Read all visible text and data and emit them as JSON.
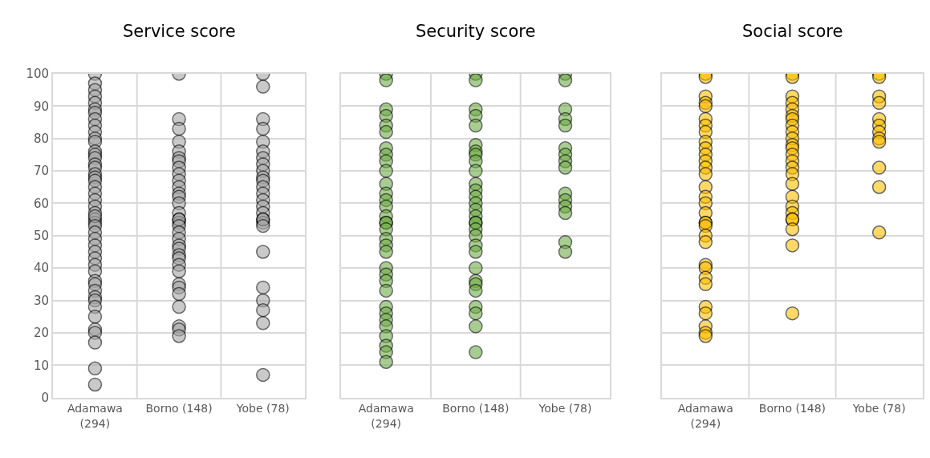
{
  "chart_data": [
    {
      "type": "scatter",
      "title": "Service score",
      "categories": [
        "Adamawa (294)",
        "Borno (148)",
        "Yobe (78)"
      ],
      "ylim": [
        0,
        100
      ],
      "yticks": [
        0,
        10,
        20,
        30,
        40,
        50,
        60,
        70,
        80,
        90,
        100
      ],
      "grid": true,
      "marker": "circle",
      "series": [
        {
          "color": "#a6a6a6",
          "x": [
            "Adamawa (294)",
            "Adamawa (294)",
            "Adamawa (294)",
            "Adamawa (294)",
            "Adamawa (294)",
            "Adamawa (294)",
            "Adamawa (294)",
            "Adamawa (294)",
            "Adamawa (294)",
            "Adamawa (294)",
            "Adamawa (294)",
            "Adamawa (294)",
            "Adamawa (294)",
            "Adamawa (294)",
            "Adamawa (294)",
            "Adamawa (294)",
            "Adamawa (294)",
            "Adamawa (294)",
            "Adamawa (294)",
            "Adamawa (294)",
            "Adamawa (294)",
            "Adamawa (294)",
            "Adamawa (294)",
            "Adamawa (294)",
            "Adamawa (294)",
            "Adamawa (294)",
            "Adamawa (294)",
            "Adamawa (294)",
            "Adamawa (294)",
            "Adamawa (294)",
            "Adamawa (294)",
            "Adamawa (294)",
            "Adamawa (294)",
            "Adamawa (294)",
            "Adamawa (294)",
            "Adamawa (294)",
            "Adamawa (294)",
            "Adamawa (294)",
            "Adamawa (294)",
            "Adamawa (294)",
            "Adamawa (294)",
            "Adamawa (294)",
            "Adamawa (294)",
            "Adamawa (294)",
            "Adamawa (294)",
            "Adamawa (294)",
            "Adamawa (294)",
            "Adamawa (294)",
            "Borno (148)",
            "Borno (148)",
            "Borno (148)",
            "Borno (148)",
            "Borno (148)",
            "Borno (148)",
            "Borno (148)",
            "Borno (148)",
            "Borno (148)",
            "Borno (148)",
            "Borno (148)",
            "Borno (148)",
            "Borno (148)",
            "Borno (148)",
            "Borno (148)",
            "Borno (148)",
            "Borno (148)",
            "Borno (148)",
            "Borno (148)",
            "Borno (148)",
            "Borno (148)",
            "Borno (148)",
            "Borno (148)",
            "Borno (148)",
            "Borno (148)",
            "Borno (148)",
            "Borno (148)",
            "Borno (148)",
            "Borno (148)",
            "Borno (148)",
            "Borno (148)",
            "Borno (148)",
            "Borno (148)",
            "Borno (148)",
            "Yobe (78)",
            "Yobe (78)",
            "Yobe (78)",
            "Yobe (78)",
            "Yobe (78)",
            "Yobe (78)",
            "Yobe (78)",
            "Yobe (78)",
            "Yobe (78)",
            "Yobe (78)",
            "Yobe (78)",
            "Yobe (78)",
            "Yobe (78)",
            "Yobe (78)",
            "Yobe (78)",
            "Yobe (78)",
            "Yobe (78)",
            "Yobe (78)",
            "Yobe (78)",
            "Yobe (78)",
            "Yobe (78)",
            "Yobe (78)",
            "Yobe (78)",
            "Yobe (78)",
            "Yobe (78)",
            "Yobe (78)"
          ],
          "values": [
            100,
            97,
            95,
            93,
            91,
            89,
            88,
            86,
            84,
            82,
            80,
            79,
            76,
            75,
            74,
            72,
            71,
            69,
            68,
            67,
            65,
            63,
            61,
            59,
            57,
            55,
            54,
            56,
            53,
            51,
            49,
            47,
            45,
            43,
            41,
            39,
            36,
            35,
            33,
            31,
            30,
            28,
            25,
            21,
            20,
            17,
            9,
            4,
            100,
            86,
            83,
            79,
            76,
            74,
            73,
            71,
            69,
            67,
            65,
            63,
            62,
            60,
            57,
            55,
            54,
            55,
            53,
            51,
            49,
            47,
            46,
            44,
            43,
            41,
            39,
            35,
            34,
            32,
            28,
            22,
            21,
            19,
            100,
            96,
            86,
            83,
            79,
            76,
            74,
            72,
            70,
            68,
            67,
            65,
            63,
            61,
            59,
            57,
            55,
            54,
            55,
            53,
            45,
            34,
            30,
            27,
            23,
            7
          ]
        }
      ]
    },
    {
      "type": "scatter",
      "title": "Security score",
      "categories": [
        "Adamawa (294)",
        "Borno (148)",
        "Yobe (78)"
      ],
      "ylim": [
        0,
        100
      ],
      "yticks": [
        {
          "value": 0,
          "label": null
        },
        {
          "value": 10,
          "label": null
        },
        {
          "value": 20,
          "label": null
        },
        {
          "value": 30,
          "label": null
        },
        {
          "value": 40,
          "label": null
        },
        {
          "value": 50,
          "label": null
        },
        {
          "value": 60,
          "label": null
        },
        {
          "value": 70,
          "label": null
        },
        {
          "value": 80,
          "label": null
        },
        {
          "value": 90,
          "label": null
        },
        {
          "value": 100,
          "label": null
        }
      ],
      "tick_labels": "x",
      "grid": true,
      "marker": "circle",
      "series": [
        {
          "color": "#70ad47",
          "x": [
            "Adamawa (294)",
            "Adamawa (294)",
            "Adamawa (294)",
            "Adamawa (294)",
            "Adamawa (294)",
            "Adamawa (294)",
            "Adamawa (294)",
            "Adamawa (294)",
            "Adamawa (294)",
            "Adamawa (294)",
            "Adamawa (294)",
            "Adamawa (294)",
            "Adamawa (294)",
            "Adamawa (294)",
            "Adamawa (294)",
            "Adamawa (294)",
            "Adamawa (294)",
            "Adamawa (294)",
            "Adamawa (294)",
            "Adamawa (294)",
            "Adamawa (294)",
            "Adamawa (294)",
            "Adamawa (294)",
            "Adamawa (294)",
            "Adamawa (294)",
            "Adamawa (294)",
            "Adamawa (294)",
            "Adamawa (294)",
            "Adamawa (294)",
            "Adamawa (294)",
            "Adamawa (294)",
            "Adamawa (294)",
            "Adamawa (294)",
            "Borno (148)",
            "Borno (148)",
            "Borno (148)",
            "Borno (148)",
            "Borno (148)",
            "Borno (148)",
            "Borno (148)",
            "Borno (148)",
            "Borno (148)",
            "Borno (148)",
            "Borno (148)",
            "Borno (148)",
            "Borno (148)",
            "Borno (148)",
            "Borno (148)",
            "Borno (148)",
            "Borno (148)",
            "Borno (148)",
            "Borno (148)",
            "Borno (148)",
            "Borno (148)",
            "Borno (148)",
            "Borno (148)",
            "Borno (148)",
            "Borno (148)",
            "Borno (148)",
            "Borno (148)",
            "Borno (148)",
            "Borno (148)",
            "Borno (148)",
            "Yobe (78)",
            "Yobe (78)",
            "Yobe (78)",
            "Yobe (78)",
            "Yobe (78)",
            "Yobe (78)",
            "Yobe (78)",
            "Yobe (78)",
            "Yobe (78)",
            "Yobe (78)",
            "Yobe (78)",
            "Yobe (78)",
            "Yobe (78)",
            "Yobe (78)",
            "Yobe (78)"
          ],
          "values": [
            100,
            98,
            89,
            87,
            84,
            82,
            77,
            75,
            73,
            70,
            66,
            63,
            61,
            59,
            56,
            54,
            54,
            52,
            49,
            47,
            45,
            40,
            38,
            36,
            33,
            28,
            26,
            24,
            22,
            19,
            16,
            14,
            11,
            100,
            98,
            89,
            87,
            84,
            78,
            76,
            75,
            73,
            70,
            66,
            64,
            62,
            60,
            58,
            56,
            54,
            54,
            52,
            50,
            47,
            45,
            40,
            36,
            35,
            33,
            28,
            26,
            22,
            14,
            100,
            98,
            89,
            86,
            84,
            77,
            75,
            73,
            71,
            63,
            61,
            59,
            57,
            48,
            45
          ]
        }
      ]
    },
    {
      "type": "scatter",
      "title": "Social score",
      "categories": [
        "Adamawa (294)",
        "Borno (148)",
        "Yobe (78)"
      ],
      "ylim": [
        0,
        100
      ],
      "yticks": [
        {
          "value": 0,
          "label": null
        },
        {
          "value": 10,
          "label": null
        },
        {
          "value": 20,
          "label": null
        },
        {
          "value": 30,
          "label": null
        },
        {
          "value": 40,
          "label": null
        },
        {
          "value": 50,
          "label": null
        },
        {
          "value": 60,
          "label": null
        },
        {
          "value": 70,
          "label": null
        },
        {
          "value": 80,
          "label": null
        },
        {
          "value": 90,
          "label": null
        },
        {
          "value": 100,
          "label": null
        }
      ],
      "tick_labels": "x",
      "grid": true,
      "marker": "circle",
      "series": [
        {
          "color": "#ffc000",
          "x": [
            "Adamawa (294)",
            "Adamawa (294)",
            "Adamawa (294)",
            "Adamawa (294)",
            "Adamawa (294)",
            "Adamawa (294)",
            "Adamawa (294)",
            "Adamawa (294)",
            "Adamawa (294)",
            "Adamawa (294)",
            "Adamawa (294)",
            "Adamawa (294)",
            "Adamawa (294)",
            "Adamawa (294)",
            "Adamawa (294)",
            "Adamawa (294)",
            "Adamawa (294)",
            "Adamawa (294)",
            "Adamawa (294)",
            "Adamawa (294)",
            "Adamawa (294)",
            "Adamawa (294)",
            "Adamawa (294)",
            "Adamawa (294)",
            "Adamawa (294)",
            "Adamawa (294)",
            "Adamawa (294)",
            "Adamawa (294)",
            "Adamawa (294)",
            "Adamawa (294)",
            "Adamawa (294)",
            "Adamawa (294)",
            "Borno (148)",
            "Borno (148)",
            "Borno (148)",
            "Borno (148)",
            "Borno (148)",
            "Borno (148)",
            "Borno (148)",
            "Borno (148)",
            "Borno (148)",
            "Borno (148)",
            "Borno (148)",
            "Borno (148)",
            "Borno (148)",
            "Borno (148)",
            "Borno (148)",
            "Borno (148)",
            "Borno (148)",
            "Borno (148)",
            "Borno (148)",
            "Borno (148)",
            "Borno (148)",
            "Borno (148)",
            "Borno (148)",
            "Borno (148)",
            "Borno (148)",
            "Yobe (78)",
            "Yobe (78)",
            "Yobe (78)",
            "Yobe (78)",
            "Yobe (78)",
            "Yobe (78)",
            "Yobe (78)",
            "Yobe (78)",
            "Yobe (78)",
            "Yobe (78)",
            "Yobe (78)",
            "Yobe (78)"
          ],
          "values": [
            100,
            99,
            93,
            91,
            90,
            86,
            84,
            82,
            79,
            77,
            75,
            73,
            71,
            69,
            65,
            62,
            60,
            57,
            54,
            54,
            53,
            50,
            48,
            41,
            40,
            37,
            35,
            28,
            26,
            22,
            20,
            19,
            100,
            99,
            93,
            91,
            89,
            87,
            86,
            84,
            82,
            80,
            78,
            77,
            75,
            73,
            71,
            69,
            66,
            62,
            59,
            57,
            55,
            55,
            52,
            47,
            26,
            100,
            99,
            93,
            91,
            86,
            84,
            82,
            80,
            79,
            71,
            65,
            51
          ]
        }
      ]
    }
  ]
}
